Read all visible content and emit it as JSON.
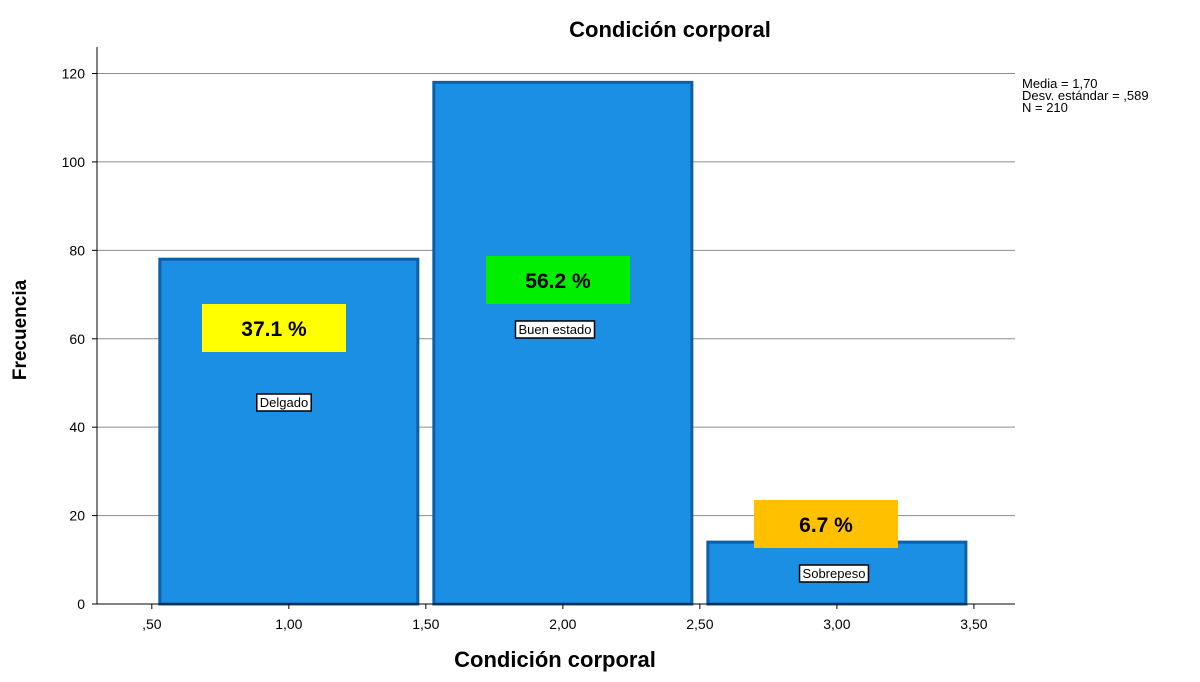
{
  "chart_data": {
    "type": "bar",
    "title": "Condición corporal",
    "xlabel": "Condición corporal",
    "ylabel": "Frecuencia",
    "xlim": [
      0.3,
      3.65
    ],
    "ylim": [
      0,
      126
    ],
    "x_ticks": [
      0.5,
      1.0,
      1.5,
      2.0,
      2.5,
      3.0,
      3.5
    ],
    "x_tick_labels": [
      ",50",
      "1,00",
      "1,50",
      "2,00",
      "2,50",
      "3,00",
      "3,50"
    ],
    "y_ticks": [
      0,
      20,
      40,
      60,
      80,
      100,
      120
    ],
    "y_tick_labels": [
      "0",
      "20",
      "40",
      "60",
      "80",
      "100",
      "120"
    ],
    "grid": true,
    "bins": [
      {
        "x0": 0.5,
        "x1": 1.5,
        "value": 78,
        "category": "Delgado",
        "percent": "37.1 %",
        "label_color": "#ffff00"
      },
      {
        "x0": 1.5,
        "x1": 2.5,
        "value": 118,
        "category": "Buen estado",
        "percent": "56.2 %",
        "label_color": "#00ee00"
      },
      {
        "x0": 2.5,
        "x1": 3.5,
        "value": 14,
        "category": "Sobrepeso",
        "percent": "6.7 %",
        "label_color": "#ffc000"
      }
    ],
    "stats": [
      "Media = 1,70",
      "Desv. estándar = ,589",
      "N = 210"
    ],
    "bar_color": "#1a8fe3",
    "bar_edge_color": "#0d5fa8"
  }
}
